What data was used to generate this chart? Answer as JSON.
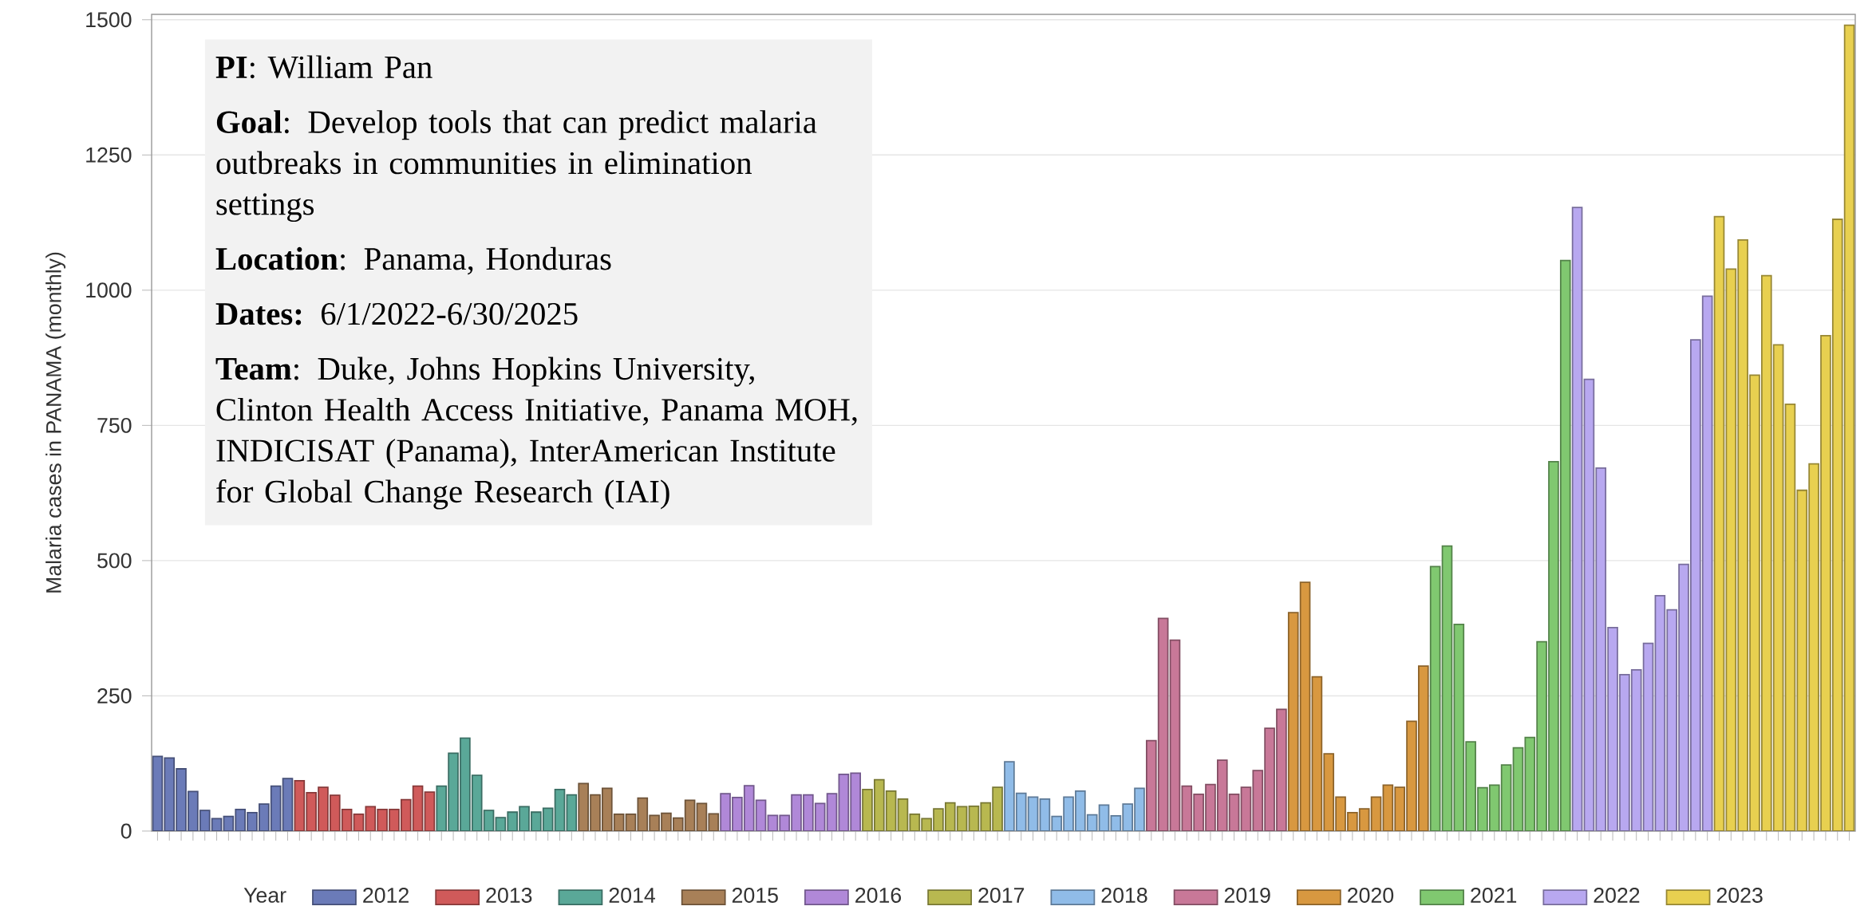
{
  "chart_data": {
    "type": "bar",
    "ylabel": "Malaria cases in PANAMA (monthly)",
    "legend_title": "Year",
    "legend": "bottom",
    "grid": "y",
    "ylim": [
      0,
      1510
    ],
    "yticks": [
      0,
      250,
      500,
      750,
      1000,
      1250,
      1500
    ],
    "categories": [
      null,
      null,
      null,
      null,
      null,
      null,
      null,
      null,
      null,
      null,
      null,
      null,
      null,
      null,
      null,
      null,
      null,
      null,
      null,
      null,
      null,
      null,
      null,
      null,
      null,
      null,
      null,
      null,
      null,
      null,
      null,
      null,
      null,
      null,
      null,
      null,
      null,
      null,
      null,
      null,
      null,
      null,
      null,
      null,
      null,
      null,
      null,
      null,
      null,
      null,
      null,
      null,
      null,
      null,
      null,
      null,
      null,
      null,
      null,
      null,
      null,
      null,
      null,
      null,
      null,
      null,
      null,
      null,
      null,
      null,
      null,
      null,
      null,
      null,
      null,
      null,
      null,
      null,
      null,
      null,
      null,
      null,
      null,
      null,
      null,
      null,
      null,
      null,
      null,
      null,
      null,
      null,
      null,
      null,
      null,
      null,
      null,
      null,
      null,
      null,
      null,
      null,
      null,
      null,
      null,
      null,
      null,
      null,
      null,
      null,
      null,
      null,
      null,
      null,
      null,
      null,
      null,
      null,
      null,
      null,
      null,
      null,
      null,
      null,
      null,
      null,
      null,
      null,
      null,
      null,
      null,
      null,
      null,
      null,
      null,
      null,
      null,
      null,
      null,
      null,
      null,
      null,
      null,
      null
    ],
    "series": [
      {
        "name": "2012",
        "color": "#6b7bb8",
        "values": [
          138,
          135,
          115,
          73,
          38,
          23,
          27,
          40,
          34,
          50,
          83,
          97,
          null,
          null,
          null,
          null,
          null,
          null,
          null,
          null,
          null,
          null,
          null,
          null,
          null,
          null,
          null,
          null,
          null,
          null,
          null,
          null,
          null,
          null,
          null,
          null,
          null,
          null,
          null,
          null,
          null,
          null,
          null,
          null,
          null,
          null,
          null,
          null,
          null,
          null,
          null,
          null,
          null,
          null,
          null,
          null,
          null,
          null,
          null,
          null,
          null,
          null,
          null,
          null,
          null,
          null,
          null,
          null,
          null,
          null,
          null,
          null,
          null,
          null,
          null,
          null,
          null,
          null,
          null,
          null,
          null,
          null,
          null,
          null,
          null,
          null,
          null,
          null,
          null,
          null,
          null,
          null,
          null,
          null,
          null,
          null,
          null,
          null,
          null,
          null,
          null,
          null,
          null,
          null,
          null,
          null,
          null,
          null,
          null,
          null,
          null,
          null,
          null,
          null,
          null,
          null,
          null,
          null,
          null,
          null,
          null,
          null,
          null,
          null,
          null,
          null,
          null,
          null,
          null,
          null,
          null,
          null,
          null,
          null,
          null,
          null,
          null,
          null,
          null,
          null,
          null,
          null,
          null,
          null
        ]
      },
      {
        "name": "2013",
        "color": "#d05a5a",
        "values": [
          null,
          null,
          null,
          null,
          null,
          null,
          null,
          null,
          null,
          null,
          null,
          null,
          93,
          71,
          81,
          66,
          40,
          31,
          45,
          40,
          40,
          58,
          83,
          72,
          null,
          null,
          null,
          null,
          null,
          null,
          null,
          null,
          null,
          null,
          null,
          null,
          null,
          null,
          null,
          null,
          null,
          null,
          null,
          null,
          null,
          null,
          null,
          null,
          null,
          null,
          null,
          null,
          null,
          null,
          null,
          null,
          null,
          null,
          null,
          null,
          null,
          null,
          null,
          null,
          null,
          null,
          null,
          null,
          null,
          null,
          null,
          null,
          null,
          null,
          null,
          null,
          null,
          null,
          null,
          null,
          null,
          null,
          null,
          null,
          null,
          null,
          null,
          null,
          null,
          null,
          null,
          null,
          null,
          null,
          null,
          null,
          null,
          null,
          null,
          null,
          null,
          null,
          null,
          null,
          null,
          null,
          null,
          null,
          null,
          null,
          null,
          null,
          null,
          null,
          null,
          null,
          null,
          null,
          null,
          null,
          null,
          null,
          null,
          null,
          null,
          null,
          null,
          null,
          null,
          null,
          null,
          null,
          null,
          null,
          null,
          null,
          null,
          null,
          null,
          null,
          null,
          null,
          null,
          null
        ]
      },
      {
        "name": "2014",
        "color": "#5aa898",
        "values": [
          null,
          null,
          null,
          null,
          null,
          null,
          null,
          null,
          null,
          null,
          null,
          null,
          null,
          null,
          null,
          null,
          null,
          null,
          null,
          null,
          null,
          null,
          null,
          null,
          83,
          144,
          172,
          103,
          38,
          25,
          35,
          45,
          35,
          42,
          77,
          67,
          null,
          null,
          null,
          null,
          null,
          null,
          null,
          null,
          null,
          null,
          null,
          null,
          null,
          null,
          null,
          null,
          null,
          null,
          null,
          null,
          null,
          null,
          null,
          null,
          null,
          null,
          null,
          null,
          null,
          null,
          null,
          null,
          null,
          null,
          null,
          null,
          null,
          null,
          null,
          null,
          null,
          null,
          null,
          null,
          null,
          null,
          null,
          null,
          null,
          null,
          null,
          null,
          null,
          null,
          null,
          null,
          null,
          null,
          null,
          null,
          null,
          null,
          null,
          null,
          null,
          null,
          null,
          null,
          null,
          null,
          null,
          null,
          null,
          null,
          null,
          null,
          null,
          null,
          null,
          null,
          null,
          null,
          null,
          null,
          null,
          null,
          null,
          null,
          null,
          null,
          null,
          null,
          null,
          null,
          null,
          null,
          null,
          null,
          null,
          null,
          null,
          null,
          null,
          null,
          null,
          null,
          null,
          null
        ]
      },
      {
        "name": "2015",
        "color": "#a88058",
        "values": [
          null,
          null,
          null,
          null,
          null,
          null,
          null,
          null,
          null,
          null,
          null,
          null,
          null,
          null,
          null,
          null,
          null,
          null,
          null,
          null,
          null,
          null,
          null,
          null,
          null,
          null,
          null,
          null,
          null,
          null,
          null,
          null,
          null,
          null,
          null,
          null,
          88,
          67,
          79,
          31,
          31,
          61,
          29,
          33,
          24,
          57,
          51,
          32,
          null,
          null,
          null,
          null,
          null,
          null,
          null,
          null,
          null,
          null,
          null,
          null,
          null,
          null,
          null,
          null,
          null,
          null,
          null,
          null,
          null,
          null,
          null,
          null,
          null,
          null,
          null,
          null,
          null,
          null,
          null,
          null,
          null,
          null,
          null,
          null,
          null,
          null,
          null,
          null,
          null,
          null,
          null,
          null,
          null,
          null,
          null,
          null,
          null,
          null,
          null,
          null,
          null,
          null,
          null,
          null,
          null,
          null,
          null,
          null,
          null,
          null,
          null,
          null,
          null,
          null,
          null,
          null,
          null,
          null,
          null,
          null,
          null,
          null,
          null,
          null,
          null,
          null,
          null,
          null,
          null,
          null,
          null,
          null,
          null,
          null,
          null,
          null,
          null,
          null,
          null,
          null,
          null,
          null,
          null,
          null
        ]
      },
      {
        "name": "2016",
        "color": "#b088d8",
        "values": [
          null,
          null,
          null,
          null,
          null,
          null,
          null,
          null,
          null,
          null,
          null,
          null,
          null,
          null,
          null,
          null,
          null,
          null,
          null,
          null,
          null,
          null,
          null,
          null,
          null,
          null,
          null,
          null,
          null,
          null,
          null,
          null,
          null,
          null,
          null,
          null,
          null,
          null,
          null,
          null,
          null,
          null,
          null,
          null,
          null,
          null,
          null,
          null,
          69,
          62,
          84,
          57,
          29,
          29,
          67,
          67,
          51,
          69,
          105,
          107,
          null,
          null,
          null,
          null,
          null,
          null,
          null,
          null,
          null,
          null,
          null,
          null,
          null,
          null,
          null,
          null,
          null,
          null,
          null,
          null,
          null,
          null,
          null,
          null,
          null,
          null,
          null,
          null,
          null,
          null,
          null,
          null,
          null,
          null,
          null,
          null,
          null,
          null,
          null,
          null,
          null,
          null,
          null,
          null,
          null,
          null,
          null,
          null,
          null,
          null,
          null,
          null,
          null,
          null,
          null,
          null,
          null,
          null,
          null,
          null,
          null,
          null,
          null,
          null,
          null,
          null,
          null,
          null,
          null,
          null,
          null,
          null,
          null,
          null,
          null,
          null,
          null,
          null,
          null,
          null,
          null,
          null,
          null,
          null
        ]
      },
      {
        "name": "2017",
        "color": "#b8b850",
        "values": [
          null,
          null,
          null,
          null,
          null,
          null,
          null,
          null,
          null,
          null,
          null,
          null,
          null,
          null,
          null,
          null,
          null,
          null,
          null,
          null,
          null,
          null,
          null,
          null,
          null,
          null,
          null,
          null,
          null,
          null,
          null,
          null,
          null,
          null,
          null,
          null,
          null,
          null,
          null,
          null,
          null,
          null,
          null,
          null,
          null,
          null,
          null,
          null,
          null,
          null,
          null,
          null,
          null,
          null,
          null,
          null,
          null,
          null,
          null,
          null,
          77,
          95,
          74,
          59,
          31,
          23,
          41,
          52,
          45,
          46,
          52,
          81,
          null,
          null,
          null,
          null,
          null,
          null,
          null,
          null,
          null,
          null,
          null,
          null,
          null,
          null,
          null,
          null,
          null,
          null,
          null,
          null,
          null,
          null,
          null,
          null,
          null,
          null,
          null,
          null,
          null,
          null,
          null,
          null,
          null,
          null,
          null,
          null,
          null,
          null,
          null,
          null,
          null,
          null,
          null,
          null,
          null,
          null,
          null,
          null,
          null,
          null,
          null,
          null,
          null,
          null,
          null,
          null,
          null,
          null,
          null,
          null,
          null,
          null,
          null,
          null,
          null,
          null,
          null,
          null,
          null,
          null,
          null,
          null
        ]
      },
      {
        "name": "2018",
        "color": "#90bce8",
        "values": [
          null,
          null,
          null,
          null,
          null,
          null,
          null,
          null,
          null,
          null,
          null,
          null,
          null,
          null,
          null,
          null,
          null,
          null,
          null,
          null,
          null,
          null,
          null,
          null,
          null,
          null,
          null,
          null,
          null,
          null,
          null,
          null,
          null,
          null,
          null,
          null,
          null,
          null,
          null,
          null,
          null,
          null,
          null,
          null,
          null,
          null,
          null,
          null,
          null,
          null,
          null,
          null,
          null,
          null,
          null,
          null,
          null,
          null,
          null,
          null,
          null,
          null,
          null,
          null,
          null,
          null,
          null,
          null,
          null,
          null,
          null,
          null,
          128,
          70,
          63,
          59,
          27,
          63,
          74,
          30,
          48,
          28,
          50,
          79,
          null,
          null,
          null,
          null,
          null,
          null,
          null,
          null,
          null,
          null,
          null,
          null,
          null,
          null,
          null,
          null,
          null,
          null,
          null,
          null,
          null,
          null,
          null,
          null,
          null,
          null,
          null,
          null,
          null,
          null,
          null,
          null,
          null,
          null,
          null,
          null,
          null,
          null,
          null,
          null,
          null,
          null,
          null,
          null,
          null,
          null,
          null,
          null,
          null,
          null,
          null,
          null,
          null,
          null,
          null,
          null,
          null,
          null,
          null,
          null
        ]
      },
      {
        "name": "2019",
        "color": "#c87898",
        "values": [
          null,
          null,
          null,
          null,
          null,
          null,
          null,
          null,
          null,
          null,
          null,
          null,
          null,
          null,
          null,
          null,
          null,
          null,
          null,
          null,
          null,
          null,
          null,
          null,
          null,
          null,
          null,
          null,
          null,
          null,
          null,
          null,
          null,
          null,
          null,
          null,
          null,
          null,
          null,
          null,
          null,
          null,
          null,
          null,
          null,
          null,
          null,
          null,
          null,
          null,
          null,
          null,
          null,
          null,
          null,
          null,
          null,
          null,
          null,
          null,
          null,
          null,
          null,
          null,
          null,
          null,
          null,
          null,
          null,
          null,
          null,
          null,
          null,
          null,
          null,
          null,
          null,
          null,
          null,
          null,
          null,
          null,
          null,
          null,
          167,
          393,
          353,
          83,
          68,
          86,
          131,
          68,
          81,
          112,
          190,
          225,
          null,
          null,
          null,
          null,
          null,
          null,
          null,
          null,
          null,
          null,
          null,
          null,
          null,
          null,
          null,
          null,
          null,
          null,
          null,
          null,
          null,
          null,
          null,
          null,
          null,
          null,
          null,
          null,
          null,
          null,
          null,
          null,
          null,
          null,
          null,
          null,
          null,
          null,
          null,
          null,
          null,
          null,
          null,
          null,
          null,
          null,
          null,
          null
        ]
      },
      {
        "name": "2020",
        "color": "#d89840",
        "values": [
          null,
          null,
          null,
          null,
          null,
          null,
          null,
          null,
          null,
          null,
          null,
          null,
          null,
          null,
          null,
          null,
          null,
          null,
          null,
          null,
          null,
          null,
          null,
          null,
          null,
          null,
          null,
          null,
          null,
          null,
          null,
          null,
          null,
          null,
          null,
          null,
          null,
          null,
          null,
          null,
          null,
          null,
          null,
          null,
          null,
          null,
          null,
          null,
          null,
          null,
          null,
          null,
          null,
          null,
          null,
          null,
          null,
          null,
          null,
          null,
          null,
          null,
          null,
          null,
          null,
          null,
          null,
          null,
          null,
          null,
          null,
          null,
          null,
          null,
          null,
          null,
          null,
          null,
          null,
          null,
          null,
          null,
          null,
          null,
          null,
          null,
          null,
          null,
          null,
          null,
          null,
          null,
          null,
          null,
          null,
          null,
          404,
          460,
          285,
          143,
          63,
          34,
          41,
          63,
          85,
          81,
          203,
          305,
          null,
          null,
          null,
          null,
          null,
          null,
          null,
          null,
          null,
          null,
          null,
          null,
          null,
          null,
          null,
          null,
          null,
          null,
          null,
          null,
          null,
          null,
          null,
          null,
          null,
          null,
          null,
          null,
          null,
          null,
          null,
          null,
          null,
          null,
          null,
          null
        ]
      },
      {
        "name": "2021",
        "color": "#80c870",
        "values": [
          null,
          null,
          null,
          null,
          null,
          null,
          null,
          null,
          null,
          null,
          null,
          null,
          null,
          null,
          null,
          null,
          null,
          null,
          null,
          null,
          null,
          null,
          null,
          null,
          null,
          null,
          null,
          null,
          null,
          null,
          null,
          null,
          null,
          null,
          null,
          null,
          null,
          null,
          null,
          null,
          null,
          null,
          null,
          null,
          null,
          null,
          null,
          null,
          null,
          null,
          null,
          null,
          null,
          null,
          null,
          null,
          null,
          null,
          null,
          null,
          null,
          null,
          null,
          null,
          null,
          null,
          null,
          null,
          null,
          null,
          null,
          null,
          null,
          null,
          null,
          null,
          null,
          null,
          null,
          null,
          null,
          null,
          null,
          null,
          null,
          null,
          null,
          null,
          null,
          null,
          null,
          null,
          null,
          null,
          null,
          null,
          null,
          null,
          null,
          null,
          null,
          null,
          null,
          null,
          null,
          null,
          null,
          null,
          489,
          527,
          382,
          165,
          80,
          85,
          122,
          154,
          173,
          350,
          683,
          1055,
          null,
          null,
          null,
          null,
          null,
          null,
          null,
          null,
          null,
          null,
          null,
          null,
          null,
          null,
          null,
          null,
          null,
          null,
          null,
          null,
          null,
          null,
          null,
          null
        ]
      },
      {
        "name": "2022",
        "color": "#b8a8f0",
        "values": [
          null,
          null,
          null,
          null,
          null,
          null,
          null,
          null,
          null,
          null,
          null,
          null,
          null,
          null,
          null,
          null,
          null,
          null,
          null,
          null,
          null,
          null,
          null,
          null,
          null,
          null,
          null,
          null,
          null,
          null,
          null,
          null,
          null,
          null,
          null,
          null,
          null,
          null,
          null,
          null,
          null,
          null,
          null,
          null,
          null,
          null,
          null,
          null,
          null,
          null,
          null,
          null,
          null,
          null,
          null,
          null,
          null,
          null,
          null,
          null,
          null,
          null,
          null,
          null,
          null,
          null,
          null,
          null,
          null,
          null,
          null,
          null,
          null,
          null,
          null,
          null,
          null,
          null,
          null,
          null,
          null,
          null,
          null,
          null,
          null,
          null,
          null,
          null,
          null,
          null,
          null,
          null,
          null,
          null,
          null,
          null,
          null,
          null,
          null,
          null,
          null,
          null,
          null,
          null,
          null,
          null,
          null,
          null,
          null,
          null,
          null,
          null,
          null,
          null,
          null,
          null,
          null,
          null,
          null,
          null,
          1153,
          835,
          671,
          376,
          289,
          298,
          347,
          435,
          409,
          493,
          908,
          989,
          null,
          null,
          null,
          null,
          null,
          null,
          null,
          null,
          null,
          null,
          null,
          null
        ]
      },
      {
        "name": "2023",
        "color": "#e8d050",
        "values": [
          null,
          null,
          null,
          null,
          null,
          null,
          null,
          null,
          null,
          null,
          null,
          null,
          null,
          null,
          null,
          null,
          null,
          null,
          null,
          null,
          null,
          null,
          null,
          null,
          null,
          null,
          null,
          null,
          null,
          null,
          null,
          null,
          null,
          null,
          null,
          null,
          null,
          null,
          null,
          null,
          null,
          null,
          null,
          null,
          null,
          null,
          null,
          null,
          null,
          null,
          null,
          null,
          null,
          null,
          null,
          null,
          null,
          null,
          null,
          null,
          null,
          null,
          null,
          null,
          null,
          null,
          null,
          null,
          null,
          null,
          null,
          null,
          null,
          null,
          null,
          null,
          null,
          null,
          null,
          null,
          null,
          null,
          null,
          null,
          null,
          null,
          null,
          null,
          null,
          null,
          null,
          null,
          null,
          null,
          null,
          null,
          null,
          null,
          null,
          null,
          null,
          null,
          null,
          null,
          null,
          null,
          null,
          null,
          null,
          null,
          null,
          null,
          null,
          null,
          null,
          null,
          null,
          null,
          null,
          null,
          null,
          null,
          null,
          null,
          null,
          null,
          null,
          null,
          null,
          null,
          null,
          null,
          1136,
          1039,
          1093,
          843,
          1027,
          899,
          789,
          630,
          679,
          916,
          1131,
          1490
        ]
      }
    ],
    "annotations": [
      "**PI**:  William Pan",
      "**Goal**: Develop tools that can predict malaria outbreaks in communities in elimination settings",
      "**Location**: Panama, Honduras",
      "**Dates:** 6/1/2022-6/30/2025",
      "**Team**:  Duke, Johns Hopkins University, Clinton Health Access Initiative, Panama MOH, INDICISAT (Panama), InterAmerican Institute for Global Change Research (IAI)"
    ]
  }
}
